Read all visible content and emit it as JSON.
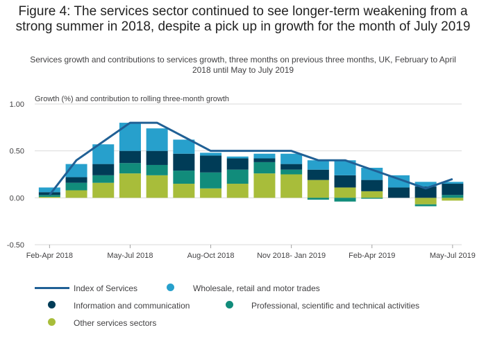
{
  "title": "Figure 4: The services sector continued to see longer-term weakening from a strong summer in 2018, despite a pick up in growth for the month of July 2019",
  "subtitle": "Services growth and contributions to services growth, three months on previous three months, UK, February to April 2018 until May to July 2019",
  "colors": {
    "index_line": "#206095",
    "wholesale": "#27a0cc",
    "information": "#003c57",
    "professional": "#118c7b",
    "other": "#a8bd3a"
  },
  "legend": {
    "index": "Index of Services",
    "wholesale": "Wholesale, retail and motor trades",
    "information": "Information and communication",
    "professional": "Professional, scientific and technical activities",
    "other": "Other services sectors"
  },
  "chart_data": {
    "type": "bar",
    "ylabel": "Growth (%) and contribution to rolling three-month growth",
    "ylim": [
      -0.5,
      1.0
    ],
    "yticks": [
      "1.00",
      "0.50",
      "0.00",
      "-0.50"
    ],
    "ytick_values": [
      1.0,
      0.5,
      0.0,
      -0.5
    ],
    "grid": true,
    "x_tick_labels": [
      "Feb-Apr 2018",
      "May-Jul 2018",
      "Aug-Oct 2018",
      "Nov 2018- Jan 2019",
      "Feb-Apr 2019",
      "May-Jul 2019"
    ],
    "x_tick_indices": [
      0,
      3,
      6,
      9,
      12,
      15
    ],
    "categories": [
      "Feb-Apr 2018",
      "Mar-May 2018",
      "Apr-Jun 2018",
      "May-Jul 2018",
      "Jun-Aug 2018",
      "Jul-Sep 2018",
      "Aug-Oct 2018",
      "Sep-Nov 2018",
      "Oct-Dec 2018",
      "Nov 2018- Jan 2019",
      "Dec 2018-Feb 2019",
      "Jan-Mar 2019",
      "Feb-Apr 2019",
      "Mar-May 2019",
      "Apr-Jun 2019",
      "May-Jul 2019"
    ],
    "series": [
      {
        "name": "Other services sectors",
        "key": "other",
        "values": [
          0.01,
          0.08,
          0.16,
          0.26,
          0.24,
          0.15,
          0.1,
          0.15,
          0.26,
          0.25,
          0.19,
          0.11,
          0.07,
          0.0,
          -0.07,
          -0.03
        ]
      },
      {
        "name": "Professional, scientific and technical activities",
        "key": "professional",
        "values": [
          0.02,
          0.08,
          0.08,
          0.11,
          0.11,
          0.14,
          0.17,
          0.15,
          0.12,
          0.05,
          -0.02,
          -0.04,
          -0.01,
          0.0,
          -0.02,
          0.03
        ]
      },
      {
        "name": "Information and communication",
        "key": "information",
        "values": [
          0.03,
          0.06,
          0.12,
          0.13,
          0.15,
          0.18,
          0.18,
          0.12,
          0.04,
          0.06,
          0.11,
          0.13,
          0.12,
          0.11,
          0.12,
          0.12
        ]
      },
      {
        "name": "Wholesale, retail and motor trades",
        "key": "wholesale",
        "values": [
          0.05,
          0.14,
          0.21,
          0.3,
          0.24,
          0.15,
          0.03,
          0.02,
          0.05,
          0.11,
          0.1,
          0.16,
          0.13,
          0.13,
          0.05,
          0.02
        ]
      }
    ],
    "line": {
      "name": "Index of Services",
      "values": [
        0.03,
        0.4,
        0.6,
        0.8,
        0.8,
        0.65,
        0.5,
        0.5,
        0.5,
        0.5,
        0.4,
        0.4,
        0.3,
        0.2,
        0.1,
        0.2
      ]
    }
  }
}
